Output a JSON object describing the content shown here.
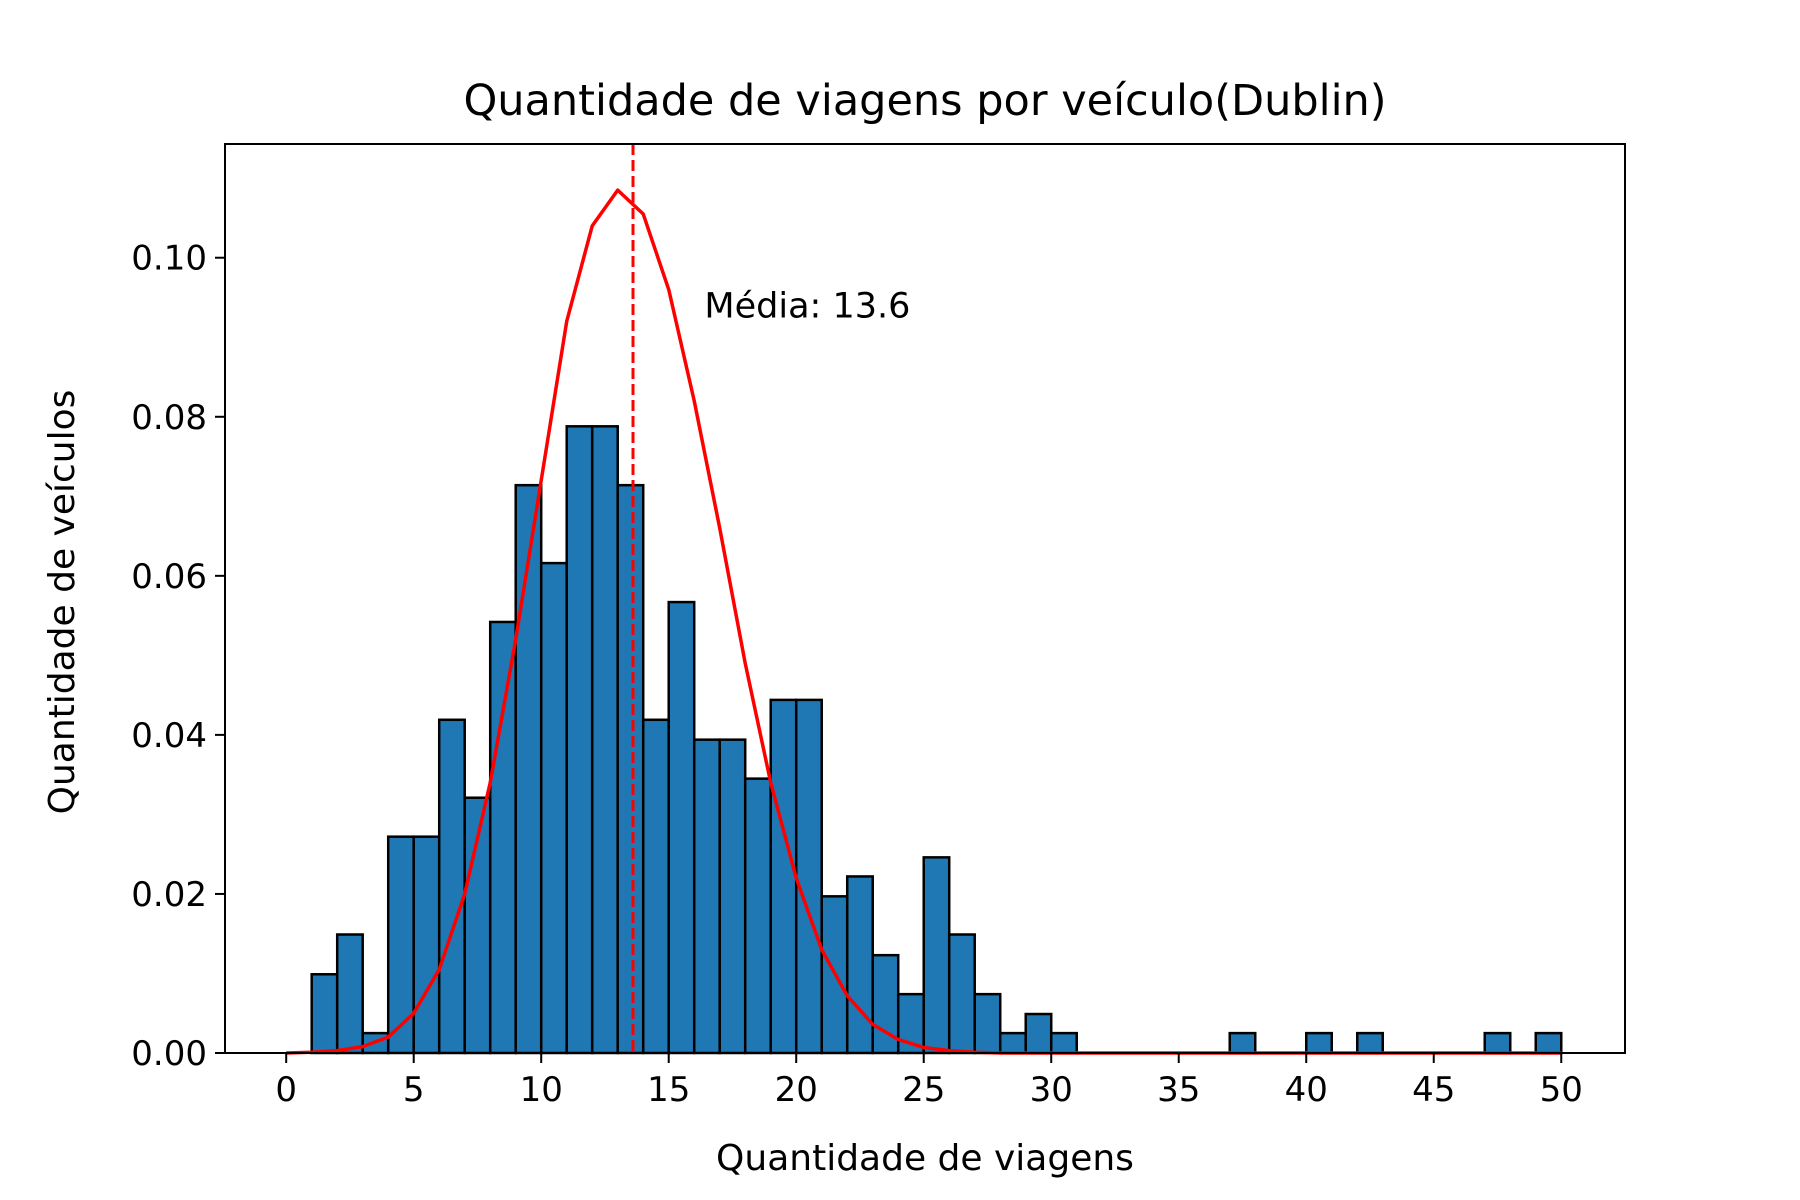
{
  "chart_data": {
    "type": "bar",
    "title": "Quantidade de viagens por veículo(Dublin)",
    "xlabel": "Quantidade de viagens",
    "ylabel": "Quantidade de veículos",
    "xlim": [
      -2.4,
      52.5
    ],
    "ylim": [
      0,
      0.1143
    ],
    "xticks": [
      0,
      5,
      10,
      15,
      20,
      25,
      30,
      35,
      40,
      45,
      50
    ],
    "xtick_labels": [
      "0",
      "5",
      "10",
      "15",
      "20",
      "25",
      "30",
      "35",
      "40",
      "45",
      "50"
    ],
    "yticks": [
      0.0,
      0.02,
      0.04,
      0.06,
      0.08,
      0.1
    ],
    "ytick_labels": [
      "0.00",
      "0.02",
      "0.04",
      "0.06",
      "0.08",
      "0.10"
    ],
    "grid": false,
    "bar_color": "#1f77b4",
    "bar_edge_color": "#000000",
    "curve_color": "#ff0000",
    "histogram": {
      "bin_start": 1,
      "bin_width": 1,
      "values": [
        0.0099,
        0.0149,
        0.0025,
        0.0272,
        0.0272,
        0.0419,
        0.0321,
        0.0542,
        0.0714,
        0.0616,
        0.0788,
        0.0788,
        0.0714,
        0.0419,
        0.0567,
        0.0394,
        0.0394,
        0.0345,
        0.0444,
        0.0444,
        0.0197,
        0.0222,
        0.0123,
        0.0074,
        0.0246,
        0.0149,
        0.0074,
        0.0025,
        0.0049,
        0.0025,
        0,
        0,
        0,
        0,
        0,
        0,
        0.0025,
        0,
        0,
        0.0025,
        0,
        0.0025,
        0,
        0,
        0,
        0,
        0.0025,
        0,
        0.0025
      ]
    },
    "series": [
      {
        "type": "line",
        "x": [
          0,
          1,
          2,
          3,
          4,
          5,
          6,
          7,
          8,
          9,
          10,
          11,
          12,
          13,
          14,
          15,
          16,
          17,
          18,
          19,
          20,
          21,
          22,
          23,
          24,
          25,
          26,
          27,
          28,
          29,
          30,
          31,
          32,
          33,
          34,
          35,
          36,
          37,
          38,
          39,
          40,
          41,
          42,
          43,
          44,
          45,
          46,
          47,
          48,
          49,
          50
        ],
        "values": [
          0.0,
          0.0001,
          0.0003,
          0.0008,
          0.002,
          0.005,
          0.0105,
          0.02,
          0.034,
          0.052,
          0.072,
          0.092,
          0.104,
          0.1085,
          0.1055,
          0.096,
          0.082,
          0.066,
          0.049,
          0.034,
          0.022,
          0.013,
          0.0072,
          0.0036,
          0.0017,
          0.0007,
          0.0003,
          0.0001,
          0.0,
          0.0,
          0.0,
          0.0,
          0.0,
          0.0,
          0.0,
          0.0,
          0.0,
          0.0,
          0.0,
          0.0,
          0.0,
          0.0,
          0.0,
          0.0,
          0.0,
          0.0,
          0.0,
          0.0,
          0.0,
          0.0,
          0.0
        ]
      }
    ],
    "mean_line": {
      "x": 13.6,
      "style": "dashed",
      "color": "#ff0000"
    },
    "annotation": {
      "text": "Média: 13.6",
      "x": 16.4,
      "y": 0.0925
    }
  }
}
